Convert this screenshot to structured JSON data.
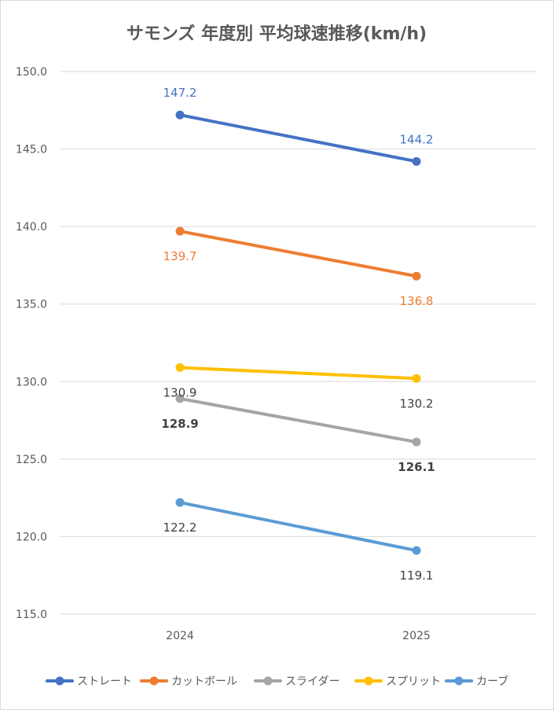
{
  "chart_data": {
    "type": "line",
    "title": "サモンズ 年度別 平均球速推移(km/h)",
    "xlabel": "",
    "ylabel": "",
    "categories": [
      "2024",
      "2025"
    ],
    "ylim": [
      115,
      150
    ],
    "yticks": [
      "115.0",
      "120.0",
      "125.0",
      "130.0",
      "135.0",
      "140.0",
      "145.0",
      "150.0"
    ],
    "grid": "horizontal",
    "legend_position": "bottom",
    "series": [
      {
        "name": "ストレート",
        "color": "#4472c4",
        "values": [
          147.2,
          144.2
        ],
        "labels": [
          "147.2",
          "144.2"
        ],
        "label_color": "#4472c4",
        "label_bold": false,
        "label_pos": [
          "above",
          "above"
        ]
      },
      {
        "name": "カットボール",
        "color": "#ed7d31",
        "values": [
          139.7,
          136.8
        ],
        "labels": [
          "139.7",
          "136.8"
        ],
        "label_color": "#ed7d31",
        "label_bold": false,
        "label_pos": [
          "below",
          "below"
        ]
      },
      {
        "name": "スライダー",
        "color": "#a5a5a5",
        "values": [
          128.9,
          126.1
        ],
        "labels": [
          "128.9",
          "126.1"
        ],
        "label_color": "#404040",
        "label_bold": true,
        "label_pos": [
          "below",
          "below"
        ]
      },
      {
        "name": "スプリット",
        "color": "#ffc000",
        "values": [
          130.9,
          130.2
        ],
        "labels": [
          "130.9",
          "130.2"
        ],
        "label_color": "#404040",
        "label_bold": false,
        "label_pos": [
          "below",
          "below"
        ]
      },
      {
        "name": "カーブ",
        "color": "#5b9bd5",
        "values": [
          122.2,
          119.1
        ],
        "labels": [
          "122.2",
          "119.1"
        ],
        "label_color": "#404040",
        "label_bold": false,
        "label_pos": [
          "below",
          "below"
        ]
      }
    ]
  }
}
